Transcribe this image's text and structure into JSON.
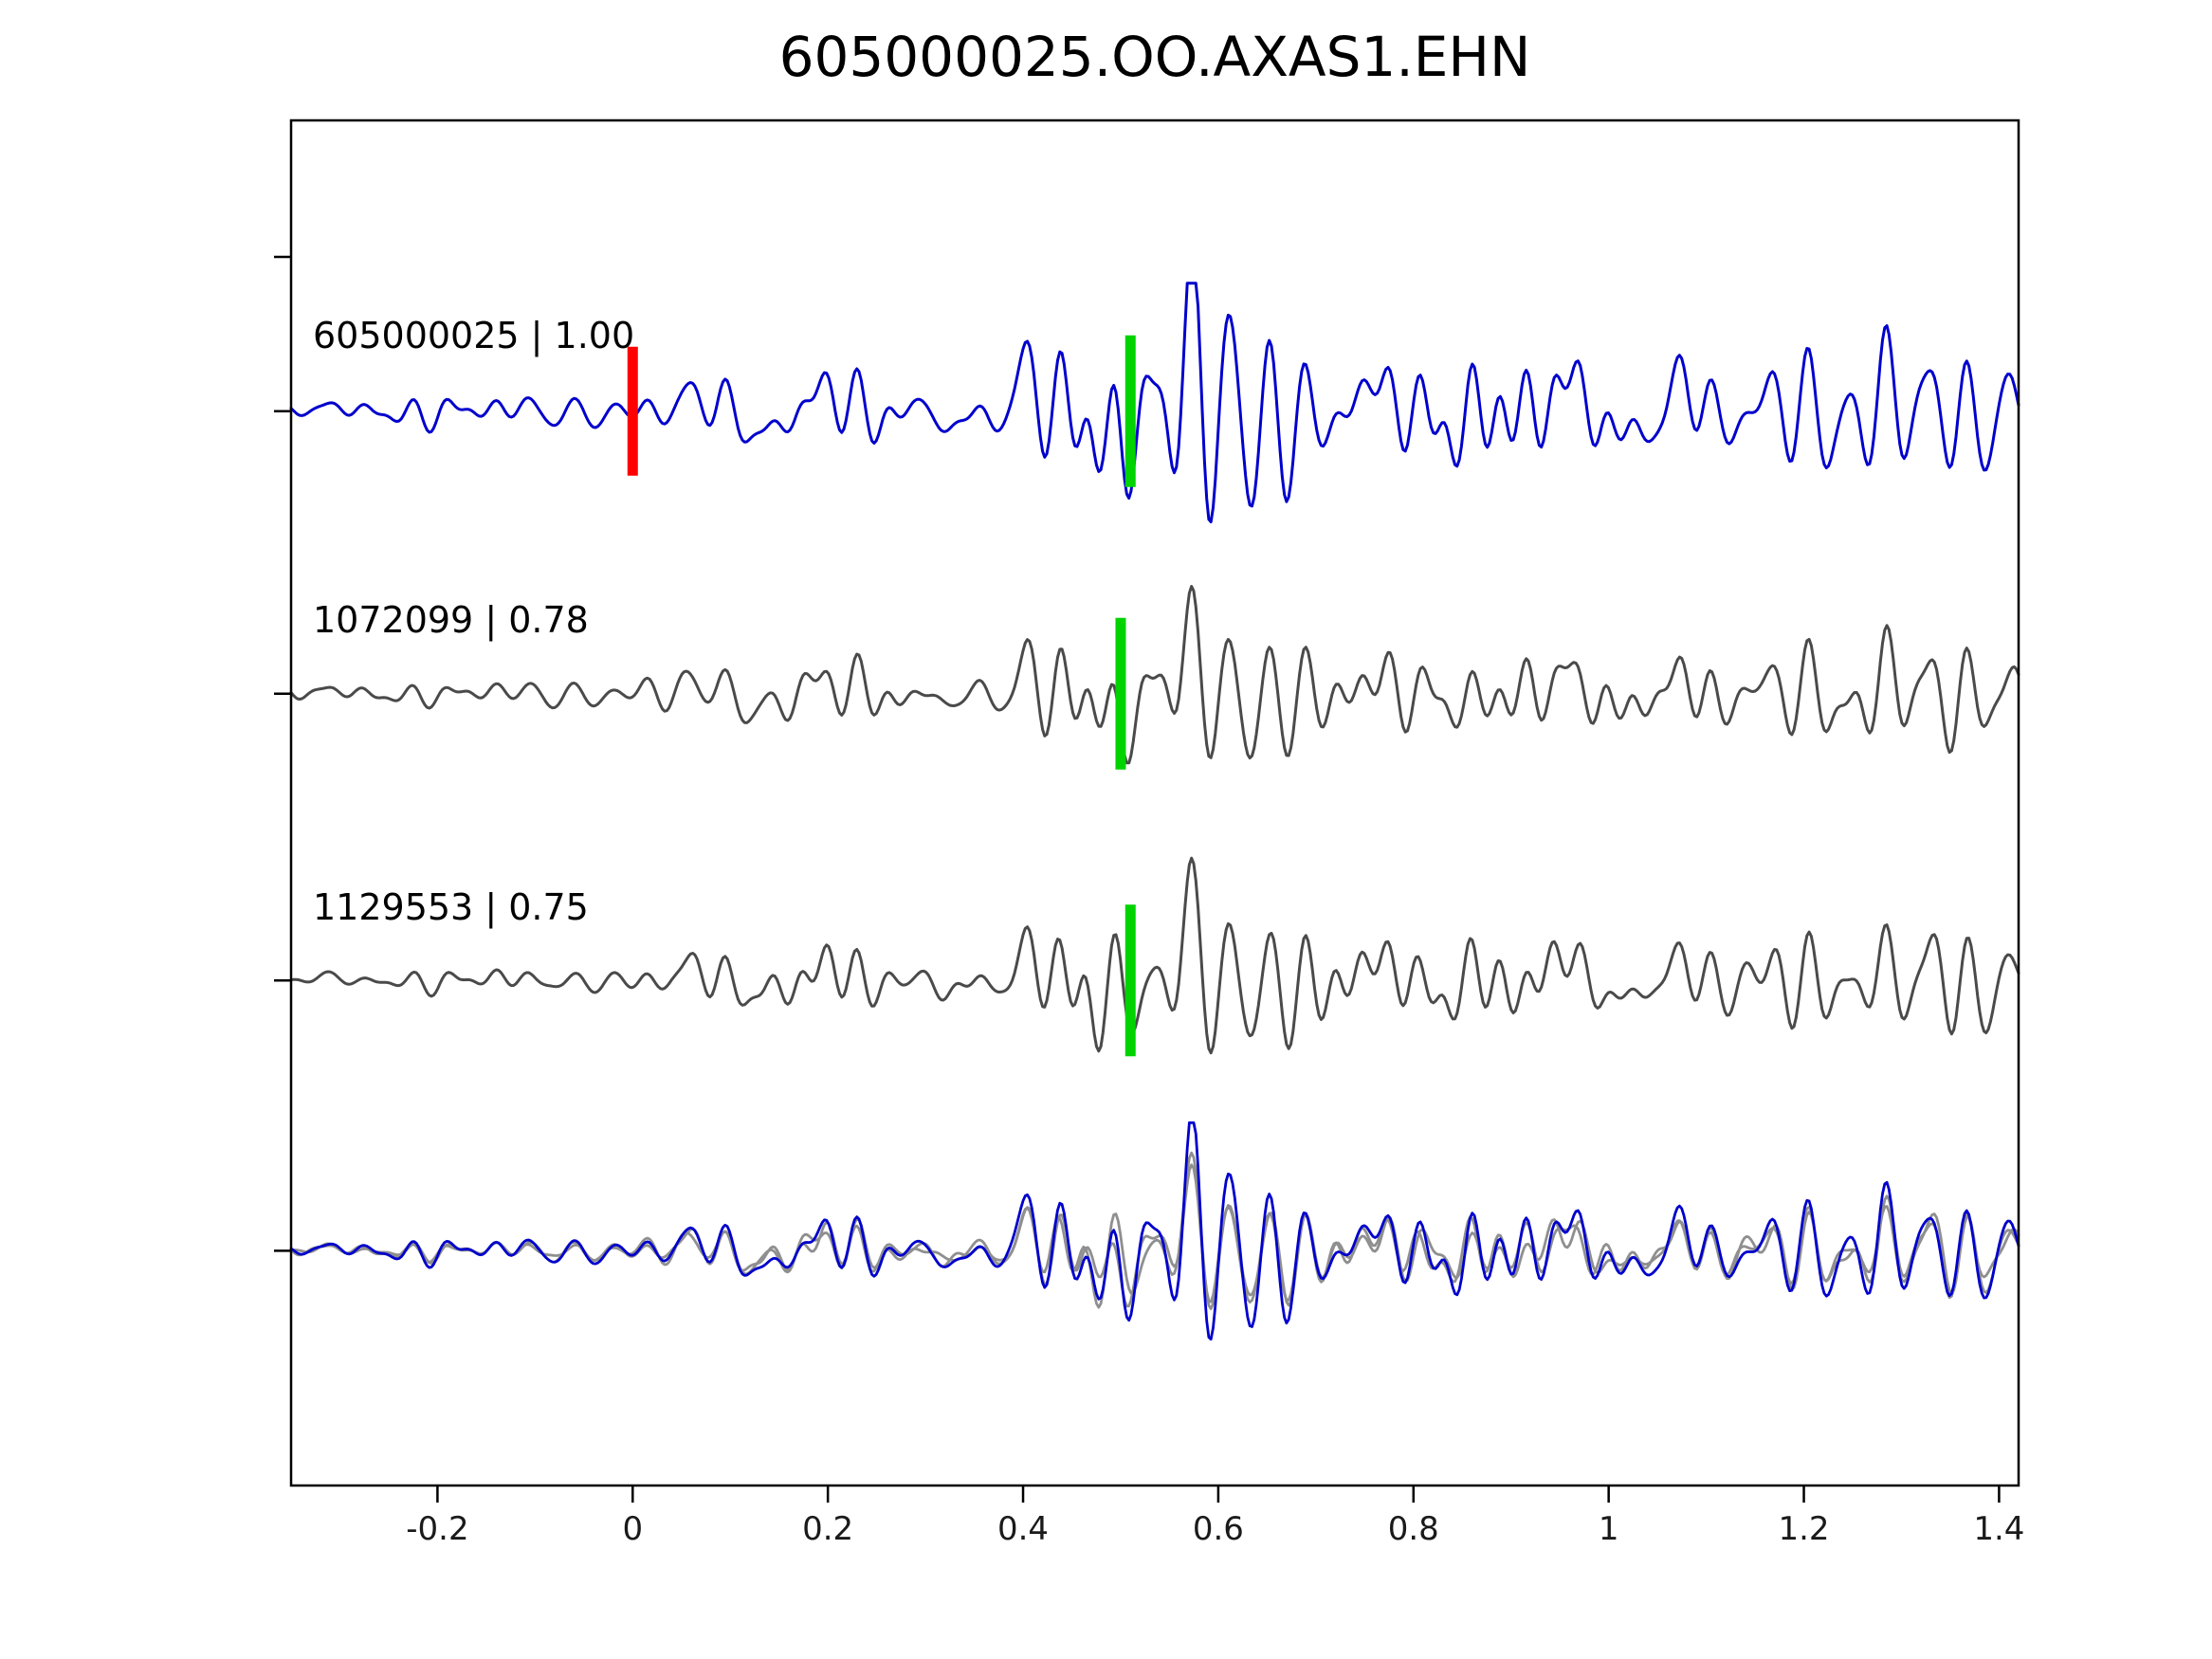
{
  "title": "605000025.OO.AXAS1.EHN",
  "chart_data": {
    "type": "line",
    "title": "605000025.OO.AXAS1.EHN",
    "xlabel": "",
    "ylabel": "",
    "xlim": [
      -0.35,
      1.42
    ],
    "x_tick_values": [
      -0.2,
      0,
      0.2,
      0.4,
      0.6,
      0.8,
      1,
      1.2,
      1.4
    ],
    "x_tick_labels": [
      "-0.2",
      "0",
      "0.2",
      "0.4",
      "0.6",
      "0.8",
      "1",
      "1.2",
      "1.4"
    ],
    "grid": false,
    "legend": "none",
    "background": "#ffffff",
    "frame_color": "#000000",
    "waveform": {
      "base_seed": 7,
      "points": 800,
      "description": "Normalized seismic traces plotted with vertical offsets: low-amplitude noise before the pick at t=0 (red bar on reference trace), emergent P energy after t=0, strongest phase near t=0.55, green bars mark the aligned phase near t=0.5 on each trace; bottom row overlays the two grey matched traces with the blue reference trace."
    },
    "series": [
      {
        "name": "605000025",
        "correlation": "1.00",
        "label": "605000025 | 1.00",
        "color": "#0000cd",
        "row": 0,
        "markers": [
          {
            "kind": "pick",
            "x": 0.0,
            "color": "#ff0000",
            "half_height": 68
          },
          {
            "kind": "align",
            "x": 0.51,
            "color": "#00d300",
            "half_height": 80
          }
        ],
        "waveform": {
          "seed": 101,
          "weight": 1.0
        }
      },
      {
        "name": "1072099",
        "correlation": "0.78",
        "label": "1072099 | 0.78",
        "color": "#4a4a4a",
        "row": 1,
        "markers": [
          {
            "kind": "align",
            "x": 0.5,
            "color": "#00d300",
            "half_height": 80
          }
        ],
        "waveform": {
          "seed": 202,
          "weight": 0.74
        }
      },
      {
        "name": "1129553",
        "correlation": "0.75",
        "label": "1129553 | 0.75",
        "color": "#4a4a4a",
        "row": 2,
        "markers": [
          {
            "kind": "align",
            "x": 0.51,
            "color": "#00d300",
            "half_height": 80
          }
        ],
        "waveform": {
          "seed": 303,
          "weight": 0.72
        }
      }
    ],
    "overlay": {
      "row": 3,
      "members": [
        {
          "series_index": 1,
          "color": "#8f8f8f"
        },
        {
          "series_index": 2,
          "color": "#8f8f8f"
        },
        {
          "series_index": 0,
          "color": "#0000cd"
        }
      ]
    }
  }
}
